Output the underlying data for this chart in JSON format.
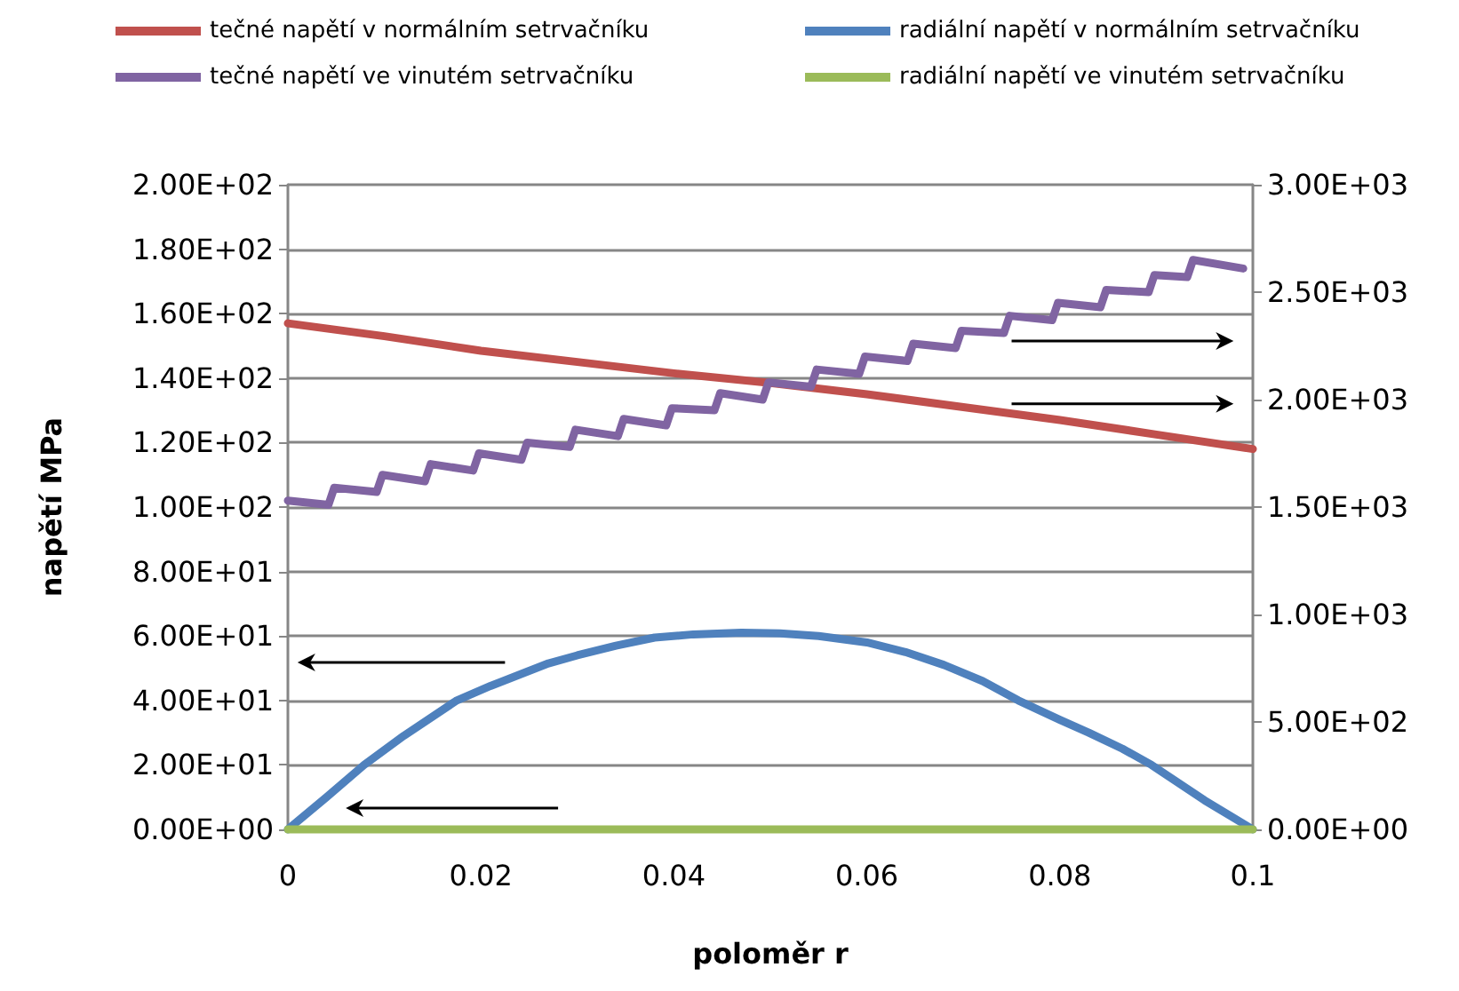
{
  "chart_data": {
    "type": "line",
    "xlabel": "poloměr r",
    "ylabel": "napětí MPa",
    "xlim": [
      0,
      0.1
    ],
    "xticks": [
      0,
      0.02,
      0.04,
      0.06,
      0.08,
      0.1
    ],
    "ylim": [
      0,
      200
    ],
    "yticks": [
      {
        "value": 0,
        "label": "0.00E+00"
      },
      {
        "value": 20,
        "label": "2.00E+01"
      },
      {
        "value": 40,
        "label": "4.00E+01"
      },
      {
        "value": 60,
        "label": "6.00E+01"
      },
      {
        "value": 80,
        "label": "8.00E+01"
      },
      {
        "value": 100,
        "label": "1.00E+02"
      },
      {
        "value": 120,
        "label": "1.20E+02"
      },
      {
        "value": 140,
        "label": "1.40E+02"
      },
      {
        "value": 160,
        "label": "1.60E+02"
      },
      {
        "value": 180,
        "label": "1.80E+02"
      },
      {
        "value": 200,
        "label": "2.00E+02"
      }
    ],
    "y2lim": [
      0,
      3000
    ],
    "y2ticks": [
      {
        "value": 0,
        "label": "0.00E+00"
      },
      {
        "value": 500,
        "label": "5.00E+02"
      },
      {
        "value": 1000,
        "label": "1.00E+03"
      },
      {
        "value": 1500,
        "label": "1.50E+03"
      },
      {
        "value": 2000,
        "label": "2.00E+03"
      },
      {
        "value": 2500,
        "label": "2.50E+03"
      },
      {
        "value": 3000,
        "label": "3.00E+03"
      }
    ],
    "grid": "y",
    "legend": "top",
    "marker": "none",
    "line_style": "solid",
    "series": [
      {
        "name": "tečné napětí v normálním setrvačníku",
        "color": "#c0504d",
        "x": [
          0,
          0.01,
          0.02,
          0.03,
          0.04,
          0.05,
          0.06,
          0.07,
          0.08,
          0.09,
          0.1
        ],
        "values": [
          157,
          153,
          148.5,
          145,
          141.5,
          138.5,
          135,
          131,
          127,
          122.5,
          118
        ]
      },
      {
        "name": "radiální napětí v normálním setrvačníku",
        "color": "#4f81bd",
        "x": [
          0,
          0.004,
          0.0079,
          0.012,
          0.0175,
          0.021,
          0.024,
          0.027,
          0.03,
          0.034,
          0.038,
          0.042,
          0.047,
          0.051,
          0.055,
          0.06,
          0.064,
          0.068,
          0.072,
          0.0757,
          0.08,
          0.083,
          0.0865,
          0.0895,
          0.095,
          0.1
        ],
        "values": [
          0,
          10,
          20,
          29,
          40,
          44.5,
          48,
          51.5,
          54,
          57,
          59.5,
          60.5,
          61,
          60.8,
          60,
          58,
          55,
          51,
          46,
          40,
          34,
          30,
          25,
          20,
          9,
          0
        ]
      },
      {
        "name": "tečné napětí ve vinutém setrvačníku",
        "color": "#8064a2",
        "axis": "y2",
        "x": [
          0,
          0.0042,
          0.0048,
          0.0092,
          0.0098,
          0.0142,
          0.0148,
          0.0192,
          0.0198,
          0.0242,
          0.0248,
          0.0292,
          0.0298,
          0.0342,
          0.0348,
          0.0392,
          0.0398,
          0.0442,
          0.0448,
          0.0492,
          0.0498,
          0.0542,
          0.0548,
          0.0592,
          0.0598,
          0.0642,
          0.0648,
          0.0692,
          0.0698,
          0.0742,
          0.0748,
          0.0792,
          0.0798,
          0.0842,
          0.0848,
          0.0892,
          0.0898,
          0.0932,
          0.0938,
          0.099
        ],
        "values": [
          1530,
          1510,
          1590,
          1570,
          1650,
          1620,
          1700,
          1670,
          1750,
          1720,
          1800,
          1780,
          1860,
          1830,
          1910,
          1880,
          1960,
          1950,
          2030,
          2000,
          2080,
          2060,
          2140,
          2120,
          2200,
          2180,
          2260,
          2240,
          2320,
          2310,
          2390,
          2370,
          2450,
          2430,
          2510,
          2500,
          2580,
          2570,
          2650,
          2610
        ]
      },
      {
        "name": "radiální napětí ve vinutém setrvačníku",
        "color": "#9bbb59",
        "x": [
          0,
          0.01,
          0.02,
          0.03,
          0.04,
          0.05,
          0.06,
          0.07,
          0.08,
          0.09,
          0.1
        ],
        "values": [
          0,
          0,
          0,
          0,
          0,
          0,
          0,
          0,
          0,
          0,
          0
        ]
      }
    ]
  }
}
